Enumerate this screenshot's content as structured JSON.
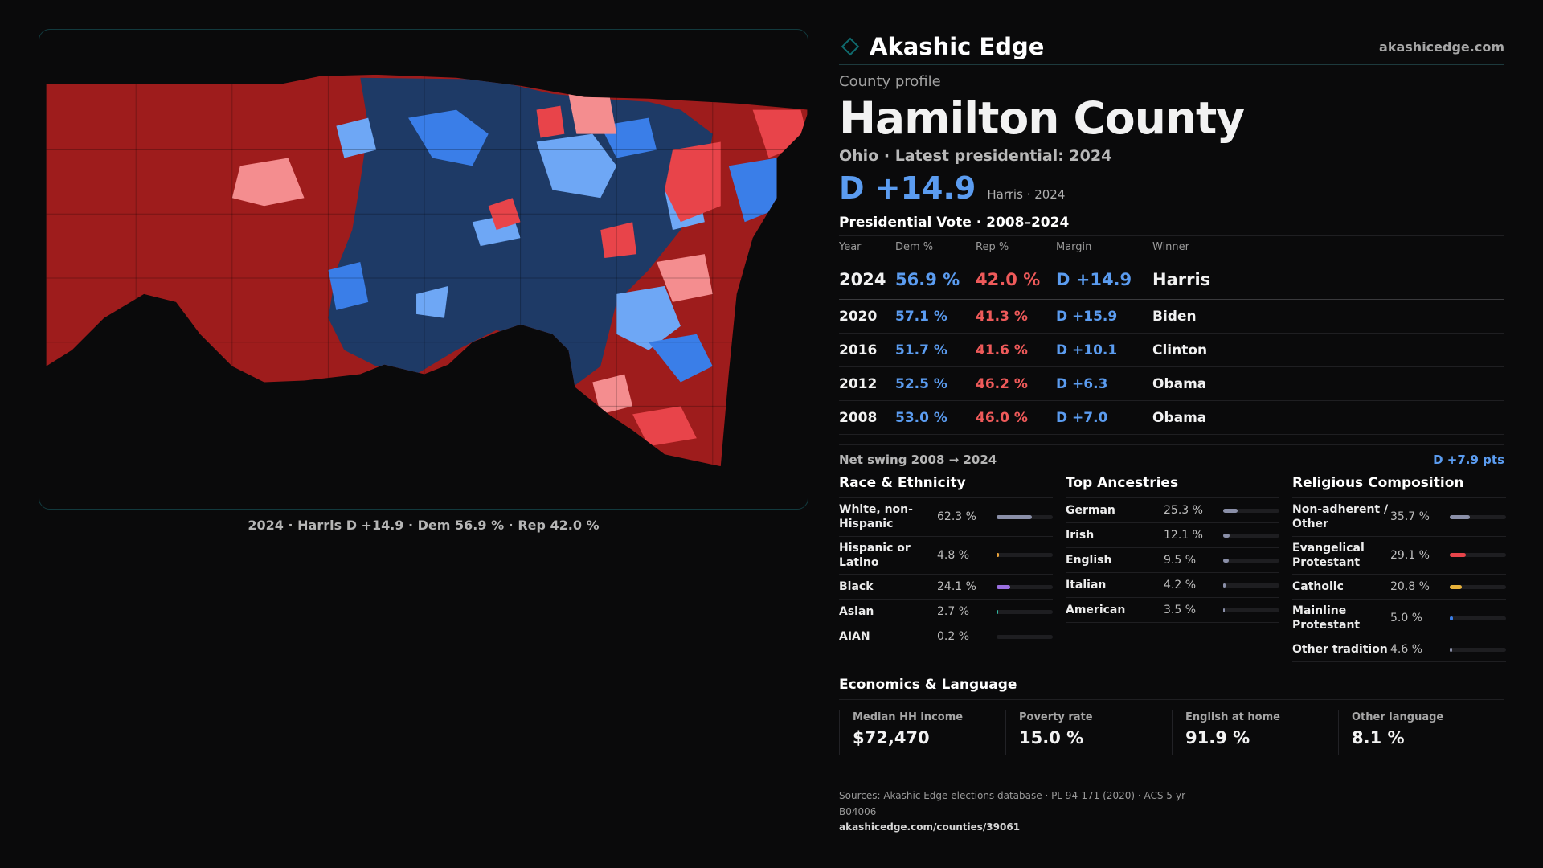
{
  "map": {
    "caption": "2024 · Harris D +14.9 · Dem 56.9 % · Rep 42.0 %",
    "colors": {
      "rep_strong": "#9e1c1c",
      "rep_mid": "#e8444a",
      "rep_light": "#f48d8f",
      "dem_strong": "#1e3a66",
      "dem_mid": "#3a7ee8",
      "dem_light": "#6ea7f5"
    }
  },
  "brand": {
    "name": "Akashic Edge",
    "site": "akashicedge.com",
    "logo_icon": "diamond-outline-icon",
    "accent": "#0f6a6e"
  },
  "profile": {
    "kicker": "County profile",
    "county": "Hamilton County",
    "subtitle": "Ohio · Latest presidential: 2024",
    "margin": "D +14.9",
    "margin_note": "Harris · 2024"
  },
  "votes": {
    "title": "Presidential Vote · 2008–2024",
    "columns": [
      "Year",
      "Dem %",
      "Rep %",
      "Margin",
      "Winner"
    ],
    "rows": [
      {
        "year": "2024",
        "dem": "56.9 %",
        "rep": "42.0 %",
        "margin": "D +14.9",
        "winner": "Harris"
      },
      {
        "year": "2020",
        "dem": "57.1 %",
        "rep": "41.3 %",
        "margin": "D +15.9",
        "winner": "Biden"
      },
      {
        "year": "2016",
        "dem": "51.7 %",
        "rep": "41.6 %",
        "margin": "D +10.1",
        "winner": "Clinton"
      },
      {
        "year": "2012",
        "dem": "52.5 %",
        "rep": "46.2 %",
        "margin": "D +6.3",
        "winner": "Obama"
      },
      {
        "year": "2008",
        "dem": "53.0 %",
        "rep": "46.0 %",
        "margin": "D +7.0",
        "winner": "Obama"
      }
    ],
    "swing_label": "Net swing 2008 → 2024",
    "swing_value": "D +7.9 pts"
  },
  "race": {
    "title": "Race & Ethnicity",
    "rows": [
      {
        "label": "White, non-Hispanic",
        "value": "62.3 %",
        "pct": 62.3,
        "color": "#8a8fa8"
      },
      {
        "label": "Hispanic or Latino",
        "value": "4.8 %",
        "pct": 4.8,
        "color": "#e8a23a"
      },
      {
        "label": "Black",
        "value": "24.1 %",
        "pct": 24.1,
        "color": "#9a6fe0"
      },
      {
        "label": "Asian",
        "value": "2.7 %",
        "pct": 2.7,
        "color": "#2fb8a0"
      },
      {
        "label": "AIAN",
        "value": "0.2 %",
        "pct": 0.2,
        "color": "#777777"
      }
    ]
  },
  "ancestry": {
    "title": "Top Ancestries",
    "rows": [
      {
        "label": "German",
        "value": "25.3 %",
        "pct": 25.3,
        "color": "#8a8fa8"
      },
      {
        "label": "Irish",
        "value": "12.1 %",
        "pct": 12.1,
        "color": "#8a8fa8"
      },
      {
        "label": "English",
        "value": "9.5 %",
        "pct": 9.5,
        "color": "#8a8fa8"
      },
      {
        "label": "Italian",
        "value": "4.2 %",
        "pct": 4.2,
        "color": "#8a8fa8"
      },
      {
        "label": "American",
        "value": "3.5 %",
        "pct": 3.5,
        "color": "#8a8fa8"
      }
    ]
  },
  "religion": {
    "title": "Religious Composition",
    "rows": [
      {
        "label": "Non-adherent / Other",
        "value": "35.7 %",
        "pct": 35.7,
        "color": "#8a8fa8"
      },
      {
        "label": "Evangelical Protestant",
        "value": "29.1 %",
        "pct": 29.1,
        "color": "#e8444a"
      },
      {
        "label": "Catholic",
        "value": "20.8 %",
        "pct": 20.8,
        "color": "#e8b23a"
      },
      {
        "label": "Mainline Protestant",
        "value": "5.0 %",
        "pct": 5.0,
        "color": "#3a7ee8"
      },
      {
        "label": "Other tradition",
        "value": "4.6 %",
        "pct": 4.6,
        "color": "#8a8fa8"
      }
    ]
  },
  "economics": {
    "title": "Economics & Language",
    "cards": [
      {
        "label": "Median HH income",
        "value": "$72,470"
      },
      {
        "label": "Poverty rate",
        "value": "15.0 %"
      },
      {
        "label": "English at home",
        "value": "91.9 %"
      },
      {
        "label": "Other language",
        "value": "8.1 %"
      }
    ]
  },
  "sources": {
    "text": "Sources: Akashic Edge elections database · PL 94-171 (2020) · ACS 5-yr B04006",
    "url": "akashicedge.com/counties/39061"
  }
}
